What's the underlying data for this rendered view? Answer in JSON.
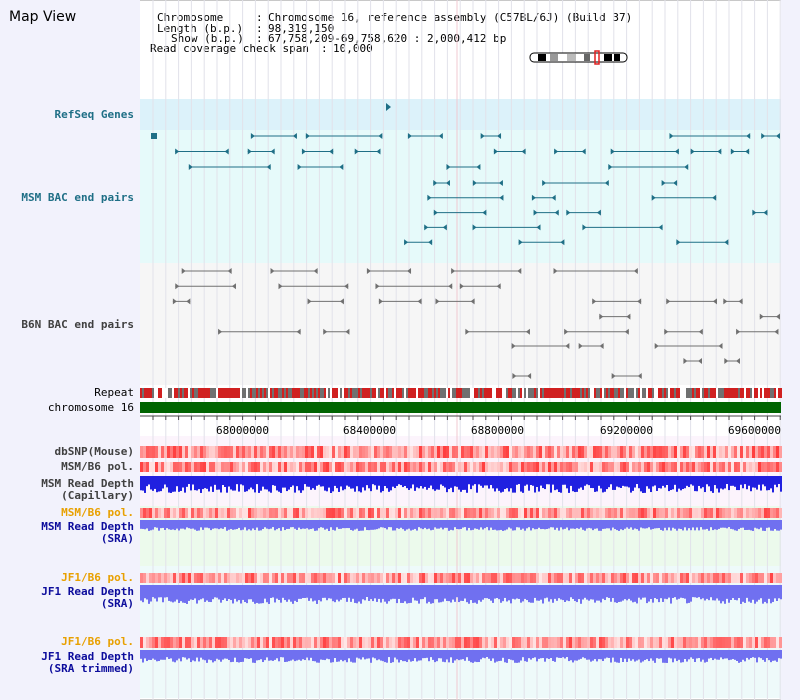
{
  "title": "Map View",
  "info": {
    "chromosome_key": "Chromosome",
    "chromosome_value": "Chromosome 16, reference assembly (C57BL/6J) (Build 37)",
    "length_key": "Length (b.p.)",
    "length_value": "98,319,150",
    "show_key": "Show (b.p.)",
    "show_value": "67,758,209-69,758,620 : 2,000,412 bp",
    "coverage_key": "Read coverage check span",
    "coverage_value": "10,000"
  },
  "tracks": {
    "refseq": "RefSeq Genes",
    "msm_bac": "MSM BAC end pairs",
    "b6n_bac": "B6N BAC end pairs",
    "repeat": "Repeat",
    "chromosome": "chromosome 16",
    "dbsnp": "dbSNP(Mouse)",
    "msm_b6_pol": "MSM/B6 pol.",
    "msm_depth_cap_1": "MSM Read Depth",
    "msm_depth_cap_2": "(Capillary)",
    "msm_b6_pol_2": "MSM/B6 pol.",
    "msm_depth_sra_1": "MSM Read Depth",
    "msm_depth_sra_2": "(SRA)",
    "jf1_pol": "JF1/B6 pol.",
    "jf1_depth_sra_1": "JF1 Read Depth",
    "jf1_depth_sra_2": "(SRA)",
    "jf1_pol_2": "JF1/B6 pol.",
    "jf1_depth_trim_1": "JF1 Read Depth",
    "jf1_depth_trim_2": "(SRA trimmed)"
  },
  "axis": {
    "ticks": [
      "68000000",
      "68400000",
      "68800000",
      "69200000",
      "69600000"
    ]
  },
  "colors": {
    "teal": "#1f6f86",
    "chromosome_green": "#006400",
    "snp_red": "#e03030",
    "depth_blue": "#2020e0",
    "depth_light_blue": "#7070f0",
    "label_orange": "#e8a000",
    "label_blue": "#0c0c9c"
  }
}
